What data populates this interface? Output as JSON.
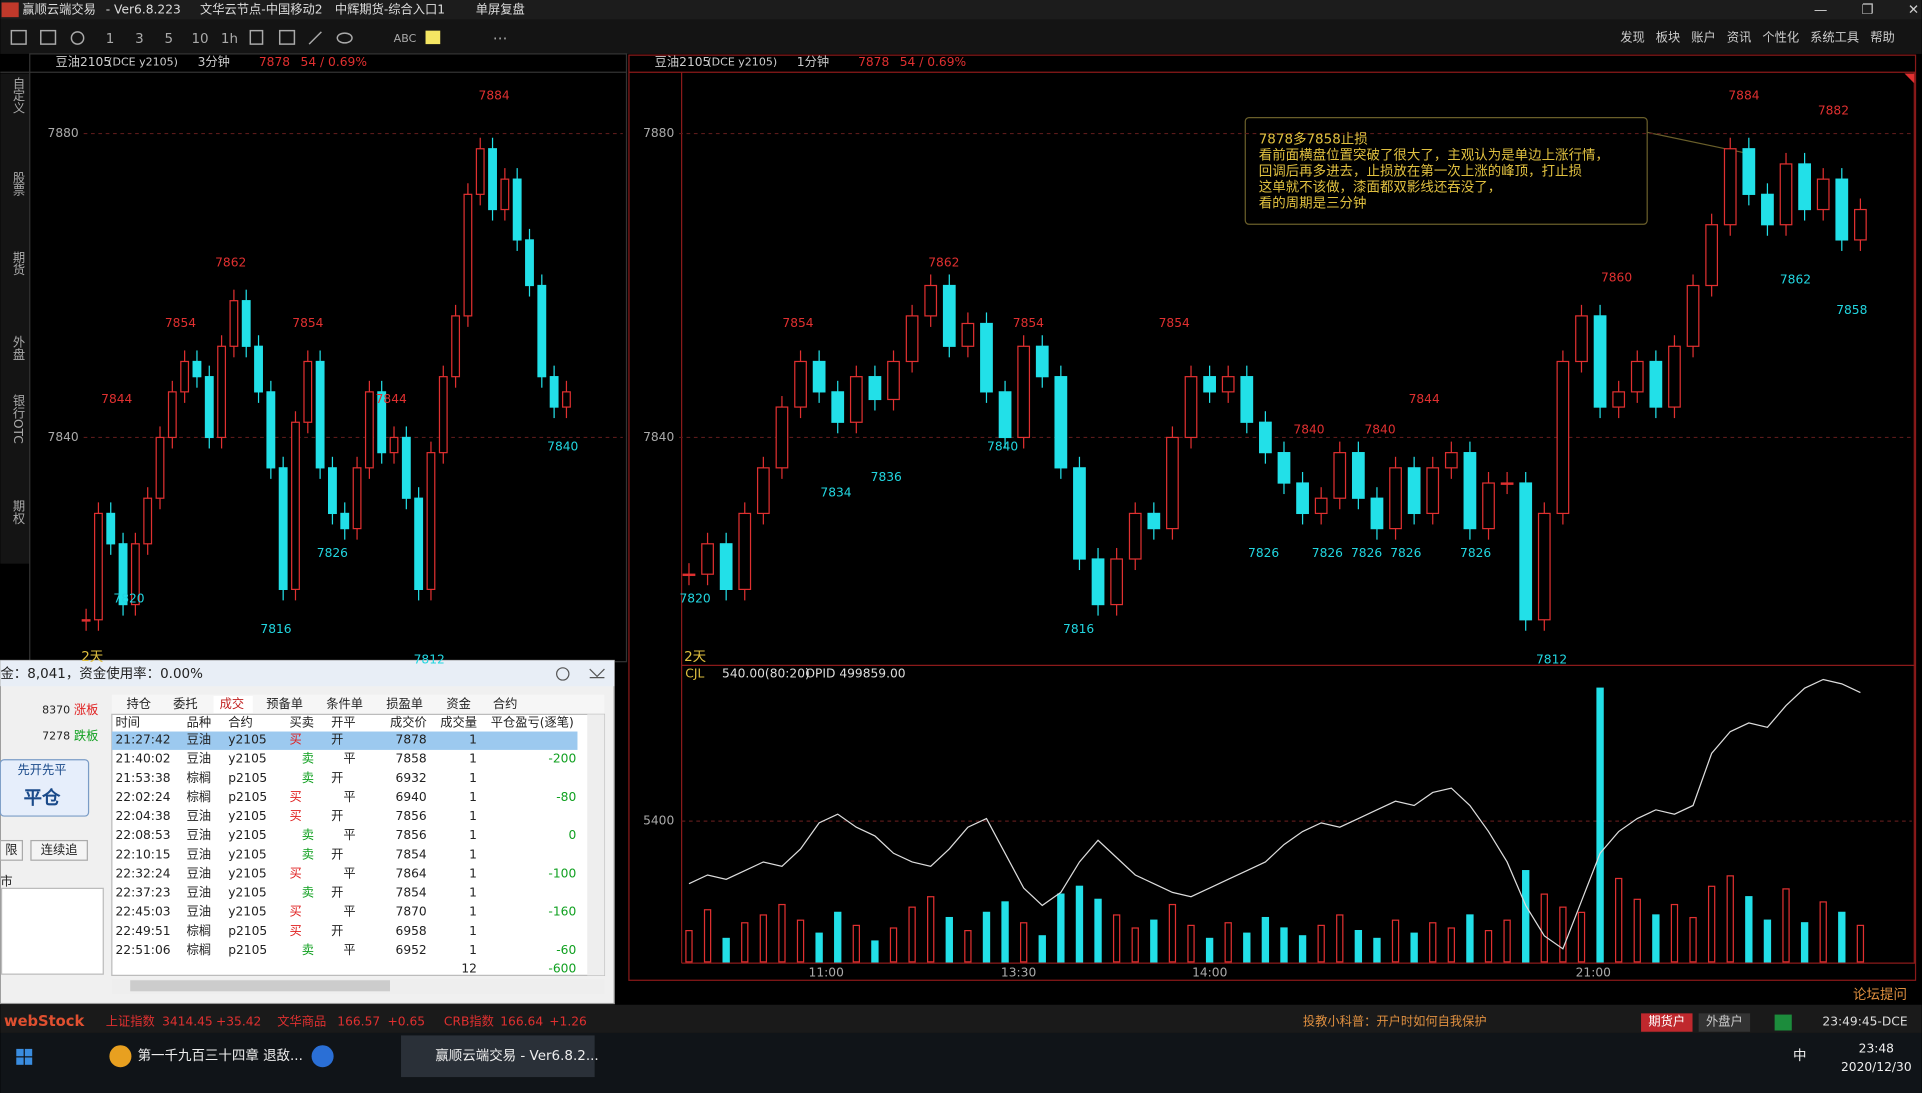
{
  "title_bar": {
    "app": "赢顺云端交易",
    "version": "- Ver6.8.223",
    "node": "文华云节点-中国移动2",
    "broker": "中辉期货-综合入口1",
    "mode": "单屏复盘"
  },
  "toolbar_labels": [
    "1",
    "3",
    "5",
    "10",
    "1h",
    "ABC"
  ],
  "menu": [
    "发现",
    "板块",
    "账户",
    "资讯",
    "个性化",
    "系统工具",
    "帮助"
  ],
  "side_tabs": [
    "自定义",
    "股票",
    "期货",
    "外盘",
    "银行OTC",
    "期权"
  ],
  "left_chart": {
    "symbol": "豆油2105",
    "code": "(DCE y2105)",
    "period": "3分钟",
    "price": "7878",
    "change": "54 / 0.69%",
    "span": "2天",
    "yticks": [
      7880,
      7840
    ],
    "highs": [
      7884,
      7862,
      7854,
      7854,
      7844,
      7844
    ],
    "lows": [
      7840,
      7826,
      7820,
      7816,
      7812
    ],
    "closes": [
      7816,
      7830,
      7826,
      7818,
      7826,
      7832,
      7840,
      7846,
      7850,
      7848,
      7840,
      7852,
      7858,
      7852,
      7846,
      7836,
      7820,
      7842,
      7850,
      7836,
      7830,
      7828,
      7836,
      7846,
      7838,
      7840,
      7832,
      7820,
      7838,
      7848,
      7856,
      7872,
      7878,
      7870,
      7874,
      7866,
      7860,
      7848,
      7844,
      7846
    ]
  },
  "right_chart": {
    "symbol": "豆油2105",
    "code": "(DCE y2105)",
    "period": "1分钟",
    "price": "7878",
    "change": "54 / 0.69%",
    "span": "2天",
    "yticks": [
      7880,
      7840
    ],
    "highs": [
      7884,
      7882,
      7862,
      7854,
      7854,
      7854,
      7860,
      7844,
      7840,
      7840
    ],
    "lows": [
      7858,
      7862,
      7840,
      7834,
      7836,
      7820,
      7816,
      7826,
      7826,
      7826,
      7826,
      7826,
      7812
    ],
    "closes": [
      7822,
      7826,
      7820,
      7830,
      7836,
      7844,
      7850,
      7846,
      7842,
      7848,
      7845,
      7850,
      7856,
      7860,
      7852,
      7855,
      7846,
      7840,
      7852,
      7848,
      7836,
      7824,
      7818,
      7824,
      7830,
      7828,
      7840,
      7848,
      7846,
      7848,
      7842,
      7838,
      7834,
      7830,
      7832,
      7838,
      7832,
      7828,
      7836,
      7830,
      7836,
      7838,
      7828,
      7834,
      7834,
      7816,
      7830,
      7850,
      7856,
      7844,
      7846,
      7850,
      7844,
      7852,
      7860,
      7868,
      7878,
      7872,
      7868,
      7876,
      7870,
      7874,
      7866,
      7870
    ],
    "time_labels": [
      "11:00",
      "13:30",
      "14:00",
      "21:00"
    ],
    "note": [
      "7878多7858止损",
      "看前面横盘位置突破了很大了，主观认为是单边上涨行情，",
      "回调后再多进去，止损放在第一次上涨的峰顶，打止损",
      "这单就不该做，漆面都双影线还吞没了，",
      "看的周期是三分钟"
    ],
    "volume": {
      "indicator": "CJL",
      "params": "540.00(80:20)",
      "opi": "OPID 499859.00",
      "yticks": [
        5400
      ],
      "ylim": [
        0,
        11000
      ],
      "values": [
        1200,
        2000,
        900,
        1500,
        1800,
        2200,
        1600,
        1100,
        1900,
        1400,
        800,
        1300,
        2100,
        2500,
        1700,
        1200,
        1900,
        2300,
        1500,
        1000,
        2600,
        2900,
        2400,
        1800,
        1300,
        1600,
        2200,
        1400,
        900,
        1500,
        1100,
        1700,
        1300,
        1000,
        1400,
        1800,
        1200,
        900,
        1600,
        1100,
        1500,
        1300,
        1800,
        1200,
        1600,
        3500,
        2600,
        2100,
        1900,
        10500,
        3200,
        2400,
        1800,
        2200,
        1700,
        2900,
        3300,
        2500,
        1600,
        2800,
        1500,
        2300,
        1900,
        1400
      ],
      "oi_lim": [
        494000,
        500600
      ],
      "oi": [
        495800,
        496000,
        495900,
        496100,
        496300,
        496200,
        496600,
        497200,
        497400,
        497100,
        496900,
        496500,
        496300,
        496200,
        496600,
        497100,
        497300,
        496500,
        495700,
        495300,
        495600,
        496300,
        496800,
        496400,
        496000,
        495800,
        495600,
        495500,
        495700,
        495900,
        496100,
        496300,
        496700,
        497000,
        497200,
        497100,
        497300,
        497500,
        497700,
        497600,
        497900,
        498000,
        497600,
        497000,
        496300,
        495300,
        494600,
        494300,
        495400,
        496500,
        497000,
        497300,
        497500,
        497400,
        497600,
        498800,
        499300,
        499500,
        499400,
        499900,
        500300,
        500500,
        500400,
        500200
      ]
    }
  },
  "trade_panel": {
    "summary": "金：8,041，资金使用率：0.00%",
    "limit_up_price": "8370",
    "limit_up": "涨板",
    "limit_down_price": "7278",
    "limit_down": "跌板",
    "mode": "先开先平",
    "close_btn": "平仓",
    "limit_btn": "限",
    "chase_btn": "连续追",
    "market": "市",
    "tabs": [
      "持仓",
      "委托",
      "成交",
      "预备单",
      "条件单",
      "损盈单",
      "资金",
      "合约"
    ],
    "active_tab": "成交",
    "headers": [
      "时间",
      "品种",
      "合约",
      "买卖",
      "开平",
      "成交价",
      "成交量",
      "平仓盈亏(逐笔)"
    ],
    "rows": [
      {
        "time": "21:27:42",
        "product": "豆油",
        "contract": "y2105",
        "side": "买",
        "oc": "开",
        "price": "7878",
        "qty": "1"
      },
      {
        "time": "21:40:02",
        "product": "豆油",
        "contract": "y2105",
        "side": "卖",
        "oc": "平",
        "price": "7858",
        "qty": "1",
        "pnl": "-200"
      },
      {
        "time": "21:53:38",
        "product": "棕榈",
        "contract": "p2105",
        "side": "卖",
        "oc": "开",
        "price": "6932",
        "qty": "1"
      },
      {
        "time": "22:02:24",
        "product": "棕榈",
        "contract": "p2105",
        "side": "买",
        "oc": "平",
        "price": "6940",
        "qty": "1",
        "pnl": "-80"
      },
      {
        "time": "22:04:38",
        "product": "豆油",
        "contract": "y2105",
        "side": "买",
        "oc": "开",
        "price": "7856",
        "qty": "1"
      },
      {
        "time": "22:08:53",
        "product": "豆油",
        "contract": "y2105",
        "side": "卖",
        "oc": "平",
        "price": "7856",
        "qty": "1",
        "pnl": "0"
      },
      {
        "time": "22:10:15",
        "product": "豆油",
        "contract": "y2105",
        "side": "卖",
        "oc": "开",
        "price": "7854",
        "qty": "1"
      },
      {
        "time": "22:32:24",
        "product": "豆油",
        "contract": "y2105",
        "side": "买",
        "oc": "平",
        "price": "7864",
        "qty": "1",
        "pnl": "-100"
      },
      {
        "time": "22:37:23",
        "product": "豆油",
        "contract": "y2105",
        "side": "卖",
        "oc": "开",
        "price": "7854",
        "qty": "1"
      },
      {
        "time": "22:45:03",
        "product": "豆油",
        "contract": "y2105",
        "side": "买",
        "oc": "平",
        "price": "7870",
        "qty": "1",
        "pnl": "-160"
      },
      {
        "time": "22:49:51",
        "product": "棕榈",
        "contract": "p2105",
        "side": "买",
        "oc": "开",
        "price": "6958",
        "qty": "1"
      },
      {
        "time": "22:51:06",
        "product": "棕榈",
        "contract": "p2105",
        "side": "卖",
        "oc": "平",
        "price": "6952",
        "qty": "1",
        "pnl": "-60"
      }
    ],
    "total_qty": "12",
    "total_pnl": "-600"
  },
  "status_bar": {
    "logo": "webStock",
    "indices": [
      {
        "name": "上证指数",
        "value": "3414.45",
        "change": "+35.42"
      },
      {
        "name": "文华商品",
        "value": "166.57",
        "change": "+0.65"
      },
      {
        "name": "CRB指数",
        "value": "166.64",
        "change": "+1.26"
      }
    ],
    "tip": "投教小科普：开户时如何自我保护",
    "futures": "期货户",
    "foreign": "外盘户",
    "clock": "23:49:45-DCE",
    "forum": "论坛提问"
  },
  "taskbar": {
    "apps": [
      "第一千九百三十四章 退敌...",
      "赢顺云端交易  - Ver6.8.2..."
    ],
    "ime": "中",
    "time": "23:48",
    "date": "2020/12/30"
  }
}
